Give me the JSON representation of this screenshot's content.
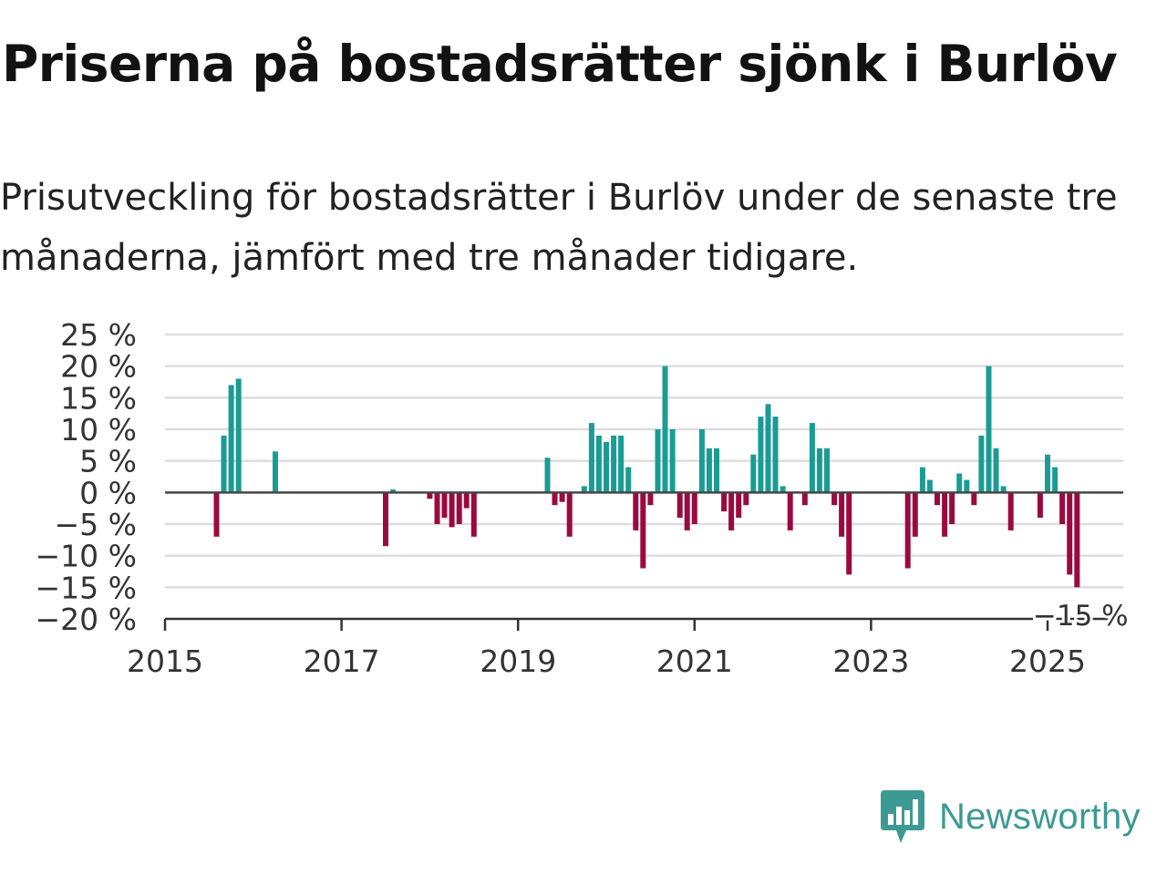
{
  "header": {
    "title": "Priserna på bostadsrätter sjönk i Burlöv",
    "subtitle": "Prisutveckling för bostadsrätter i Burlöv under de senaste tre månaderna, jämfört med tre månader tidigare."
  },
  "logo": {
    "text": "Newsworthy",
    "icon": "newsworthy-logo-icon"
  },
  "colors": {
    "positive": "#1a9c94",
    "negative": "#9a0a3f",
    "gridline": "#dddddd",
    "zeroline": "#444444",
    "brand": "#3d9a93"
  },
  "chart_data": {
    "type": "bar",
    "title": "Priserna på bostadsrätter sjönk i Burlöv",
    "subtitle": "Prisutveckling för bostadsrätter i Burlöv under de senaste tre månaderna, jämfört med tre månader tidigare.",
    "xlabel": "",
    "ylabel": "",
    "ylim": [
      -20,
      25
    ],
    "yticks": [
      25,
      20,
      15,
      10,
      5,
      0,
      -5,
      -10,
      -15,
      -20
    ],
    "ytick_labels": [
      "25 %",
      "20 %",
      "15 %",
      "10 %",
      "5 %",
      "0 %",
      "−5 %",
      "−10 %",
      "−15 %",
      "−20 %"
    ],
    "xlim": [
      "2015-01",
      "2025-12"
    ],
    "xticks": [
      "2015",
      "2017",
      "2019",
      "2021",
      "2023",
      "2025"
    ],
    "grid": true,
    "legend": "none",
    "annotation": {
      "text": "−15 %",
      "x": "2025-05",
      "y": -15
    },
    "x": [
      "2015-08",
      "2015-09",
      "2015-10",
      "2015-11",
      "2016-04",
      "2017-07",
      "2017-08",
      "2018-01",
      "2018-02",
      "2018-03",
      "2018-04",
      "2018-05",
      "2018-06",
      "2018-07",
      "2019-05",
      "2019-06",
      "2019-07",
      "2019-08",
      "2019-10",
      "2019-11",
      "2019-12",
      "2020-01",
      "2020-02",
      "2020-03",
      "2020-04",
      "2020-05",
      "2020-06",
      "2020-07",
      "2020-08",
      "2020-09",
      "2020-10",
      "2020-11",
      "2020-12",
      "2021-01",
      "2021-02",
      "2021-03",
      "2021-04",
      "2021-05",
      "2021-06",
      "2021-07",
      "2021-08",
      "2021-09",
      "2021-10",
      "2021-11",
      "2021-12",
      "2022-01",
      "2022-02",
      "2022-04",
      "2022-05",
      "2022-06",
      "2022-07",
      "2022-08",
      "2022-09",
      "2022-10",
      "2023-06",
      "2023-07",
      "2023-08",
      "2023-09",
      "2023-10",
      "2023-11",
      "2023-12",
      "2024-01",
      "2024-02",
      "2024-03",
      "2024-04",
      "2024-05",
      "2024-06",
      "2024-07",
      "2024-08",
      "2024-12",
      "2025-01",
      "2025-02",
      "2025-03",
      "2025-04",
      "2025-05"
    ],
    "values": [
      -7,
      9,
      17,
      18,
      6.5,
      -8.5,
      0.5,
      -1,
      -5,
      -4,
      -5.5,
      -5,
      -2.5,
      -7,
      5.5,
      -2,
      -1.5,
      -7,
      1,
      11,
      9,
      8,
      9,
      9,
      4,
      -6,
      -12,
      -2,
      10,
      20,
      10,
      -4,
      -6,
      -5,
      10,
      7,
      7,
      -3,
      -6,
      -4,
      -2,
      6,
      12,
      14,
      12,
      1,
      -6,
      -2,
      11,
      7,
      7,
      -2,
      -7,
      -13,
      -12,
      -7,
      4,
      2,
      -2,
      -7,
      -5,
      3,
      2,
      -2,
      9,
      20,
      7,
      1,
      -6,
      -4,
      6,
      4,
      -5,
      -13,
      -15
    ]
  }
}
